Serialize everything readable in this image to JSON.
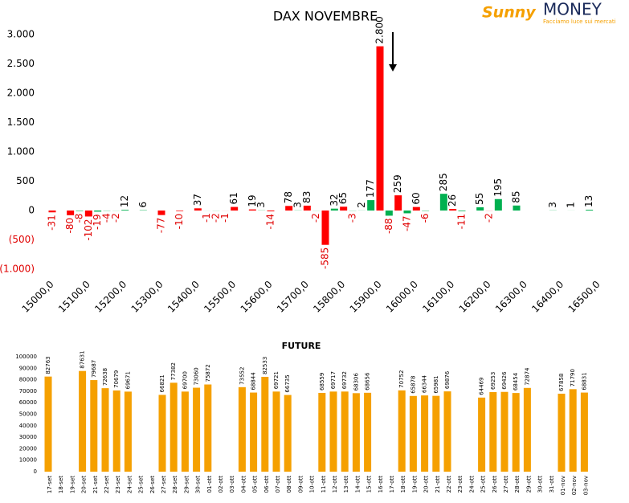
{
  "logo": {
    "brand": "Sunny",
    "name": "MONEY",
    "tagline": "Facciamo luce sui mercati"
  },
  "chart_data": [
    {
      "type": "bar",
      "title": "DAX NOVEMBRE",
      "x": [
        15000,
        15025,
        15050,
        15075,
        15100,
        15125,
        15150,
        15175,
        15200,
        15225,
        15250,
        15275,
        15300,
        15325,
        15350,
        15375,
        15400,
        15425,
        15450,
        15475,
        15500,
        15525,
        15550,
        15575,
        15600,
        15625,
        15650,
        15675,
        15700,
        15725,
        15750,
        15775,
        15800,
        15825,
        15850,
        15875,
        15900,
        15925,
        15950,
        15975,
        16000,
        16025,
        16050,
        16075,
        16100,
        16125,
        16150,
        16175,
        16200,
        16225,
        16250,
        16275,
        16300,
        16325,
        16350,
        16375,
        16400,
        16425,
        16450,
        16475,
        16500
      ],
      "values": [
        -31,
        null,
        -80,
        -8,
        -102,
        -19,
        -4,
        -2,
        12,
        null,
        6,
        null,
        -77,
        null,
        -10,
        null,
        37,
        -1,
        -2,
        -1,
        61,
        null,
        19,
        3,
        -14,
        null,
        78,
        3,
        83,
        -2,
        -585,
        32,
        65,
        -3,
        2,
        177,
        2800,
        -88,
        259,
        -47,
        60,
        -6,
        null,
        285,
        26,
        -11,
        null,
        55,
        -2,
        195,
        null,
        85,
        null,
        null,
        null,
        3,
        null,
        1,
        null,
        13,
        null
      ],
      "value_labels": [
        "-31",
        null,
        "-80",
        "-8",
        "-102",
        "-19",
        "-4",
        "-2",
        "12",
        null,
        "6",
        null,
        "-77",
        null,
        "-10",
        null,
        "37",
        "-1",
        "-2",
        "-1",
        "61",
        null,
        "19",
        "3",
        "-14",
        null,
        "78",
        "3",
        "83",
        "-2",
        "-585",
        "32",
        "65",
        "-3",
        "2",
        "177",
        "2.800",
        "-88",
        "259",
        "-47",
        "60",
        "-6",
        null,
        "285",
        "26",
        "-11",
        null,
        "55",
        "-2",
        "195",
        null,
        "85",
        null,
        null,
        null,
        "3",
        null,
        "1",
        null,
        "13",
        null
      ],
      "colors": [
        "#ff0000",
        null,
        "#ff0000",
        "#00b050",
        "#ff0000",
        "#00b050",
        "#00b050",
        "#00b050",
        "#00b050",
        null,
        "#00b050",
        null,
        "#ff0000",
        null,
        "#ff0000",
        null,
        "#ff0000",
        "#00b050",
        "#00b050",
        "#ff0000",
        "#ff0000",
        null,
        "#ff0000",
        "#00b050",
        "#ff0000",
        null,
        "#ff0000",
        "#00b050",
        "#ff0000",
        "#00b050",
        "#ff0000",
        "#00b050",
        "#ff0000",
        "#00b050",
        "#00b050",
        "#00b050",
        "#ff0000",
        "#00b050",
        "#ff0000",
        "#00b050",
        "#ff0000",
        "#00b050",
        null,
        "#00b050",
        "#ff0000",
        "#00b050",
        null,
        "#00b050",
        "#ff0000",
        "#00b050",
        null,
        "#00b050",
        null,
        null,
        null,
        "#00b050",
        null,
        "#00b050",
        null,
        "#00b050",
        null
      ],
      "xlim": [
        15000,
        16500
      ],
      "xticks": [
        {
          "value": 15000,
          "label": "15000,0"
        },
        {
          "value": 15100,
          "label": "15100,0"
        },
        {
          "value": 15200,
          "label": "15200,0"
        },
        {
          "value": 15300,
          "label": "15300,0"
        },
        {
          "value": 15400,
          "label": "15400,0"
        },
        {
          "value": 15500,
          "label": "15500,0"
        },
        {
          "value": 15600,
          "label": "15600,0"
        },
        {
          "value": 15700,
          "label": "15700,0"
        },
        {
          "value": 15800,
          "label": "15800,0"
        },
        {
          "value": 15900,
          "label": "15900,0"
        },
        {
          "value": 16000,
          "label": "16000,0"
        },
        {
          "value": 16100,
          "label": "16100,0"
        },
        {
          "value": 16200,
          "label": "16200,0"
        },
        {
          "value": 16300,
          "label": "16300,0"
        },
        {
          "value": 16400,
          "label": "16400,0"
        },
        {
          "value": 16500,
          "label": "16500,0"
        }
      ],
      "ylim": [
        -1000,
        3000
      ],
      "yticks": [
        {
          "value": 3000,
          "label": "3.000"
        },
        {
          "value": 2500,
          "label": "2.500"
        },
        {
          "value": 2000,
          "label": "2.000"
        },
        {
          "value": 1500,
          "label": "1.500"
        },
        {
          "value": 1000,
          "label": "1.000"
        },
        500,
        0,
        {
          "value": -500,
          "label": "(500)"
        },
        {
          "value": -1000,
          "label": "(1.000)"
        }
      ]
    },
    {
      "type": "bar",
      "title": "FUTURE",
      "color": "#f5a000",
      "categories": [
        "17-set",
        "18-set",
        "19-set",
        "20-set",
        "21-set",
        "22-set",
        "23-set",
        "24-set",
        "25-set",
        "26-set",
        "27-set",
        "28-set",
        "29-set",
        "30-set",
        "01-ott",
        "02-ott",
        "03-ott",
        "04-ott",
        "05-ott",
        "06-ott",
        "07-ott",
        "08-ott",
        "09-ott",
        "10-ott",
        "11-ott",
        "12-ott",
        "13-ott",
        "14-ott",
        "15-ott",
        "16-ott",
        "17-ott",
        "18-ott",
        "19-ott",
        "20-ott",
        "21-ott",
        "22-ott",
        "23-ott",
        "24-ott",
        "25-ott",
        "26-ott",
        "27-ott",
        "28-ott",
        "29-ott",
        "30-ott",
        "31-ott",
        "01-nov",
        "02-nov",
        "03-nov"
      ],
      "values": [
        82763,
        null,
        null,
        87631,
        79687,
        72638,
        70679,
        69671,
        null,
        null,
        66821,
        77382,
        69700,
        73060,
        75872,
        null,
        null,
        73552,
        68844,
        82533,
        69721,
        66735,
        null,
        null,
        68559,
        69717,
        69732,
        68306,
        68656,
        null,
        null,
        70752,
        65878,
        66344,
        65981,
        69876,
        null,
        null,
        64469,
        69253,
        69426,
        68454,
        72874,
        null,
        null,
        67858,
        71790,
        68831
      ],
      "ylim": [
        0,
        100000
      ],
      "yticks": [
        0,
        10000,
        20000,
        30000,
        40000,
        50000,
        60000,
        70000,
        80000,
        90000,
        100000
      ]
    }
  ]
}
